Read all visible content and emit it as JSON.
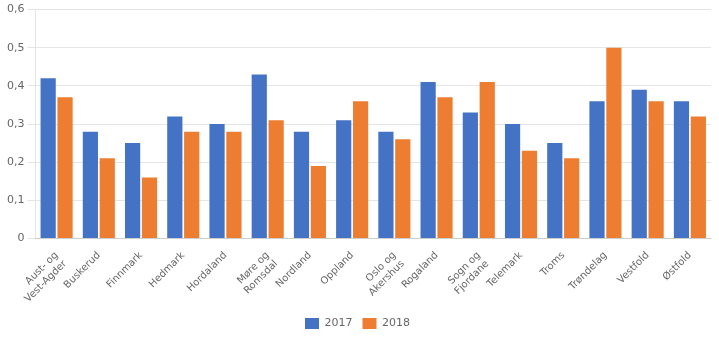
{
  "chart_data": {
    "type": "bar",
    "categories": [
      "Aust- og\nVest-Agder",
      "Buskerud",
      "Finnmark",
      "Hedmark",
      "Hordaland",
      "Møre og\nRomsdal",
      "Nordland",
      "Oppland",
      "Oslo og\nAkershus",
      "Rogaland",
      "Sogn og\nFjordane",
      "Telemark",
      "Troms",
      "Trøndelag",
      "Vestfold",
      "Østfold"
    ],
    "series": [
      {
        "name": "2017",
        "color": "#4472C4",
        "values": [
          0.42,
          0.28,
          0.25,
          0.32,
          0.3,
          0.43,
          0.28,
          0.31,
          0.28,
          0.41,
          0.33,
          0.3,
          0.25,
          0.36,
          0.39,
          0.36
        ]
      },
      {
        "name": "2018",
        "color": "#ED7D31",
        "values": [
          0.37,
          0.21,
          0.16,
          0.28,
          0.28,
          0.31,
          0.19,
          0.36,
          0.26,
          0.37,
          0.41,
          0.23,
          0.21,
          0.5,
          0.36,
          0.32
        ]
      }
    ],
    "ylim": [
      0,
      0.6
    ],
    "yticks": [
      0,
      {
        "value": 0.1,
        "label": "0,1"
      },
      {
        "value": 0.2,
        "label": "0,2"
      },
      {
        "value": 0.3,
        "label": "0,3"
      },
      {
        "value": 0.4,
        "label": "0,4"
      },
      {
        "value": 0.5,
        "label": "0,5"
      },
      {
        "value": 0.6,
        "label": "0,6"
      }
    ],
    "grid": true,
    "legend": "bottom"
  }
}
